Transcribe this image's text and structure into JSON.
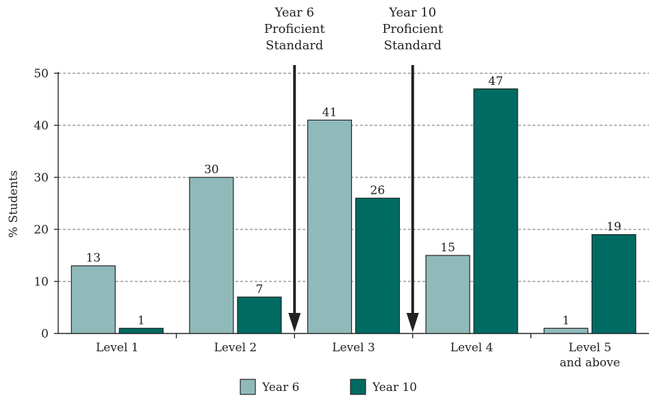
{
  "chart_data": {
    "type": "bar",
    "ylabel": "% Students",
    "xlabel": "",
    "ylim": [
      0,
      50
    ],
    "yticks": [
      0,
      10,
      20,
      30,
      40,
      50
    ],
    "grid": true,
    "legend_position": "bottom-center",
    "categories": [
      [
        "Level 1"
      ],
      [
        "Level 2"
      ],
      [
        "Level 3"
      ],
      [
        "Level 4"
      ],
      [
        "Level 5",
        "and above"
      ]
    ],
    "series": [
      {
        "name": "Year 6",
        "values": [
          13,
          30,
          41,
          15,
          1
        ],
        "color": "#8fbab9"
      },
      {
        "name": "Year 10",
        "values": [
          1,
          7,
          26,
          47,
          19
        ],
        "color": "#006b63"
      }
    ],
    "annotations": [
      {
        "text": [
          "Year 6",
          "Proficient",
          "Standard"
        ],
        "between": [
          1,
          2
        ]
      },
      {
        "text": [
          "Year 10",
          "Proficient",
          "Standard"
        ],
        "between": [
          2,
          3
        ]
      }
    ]
  }
}
